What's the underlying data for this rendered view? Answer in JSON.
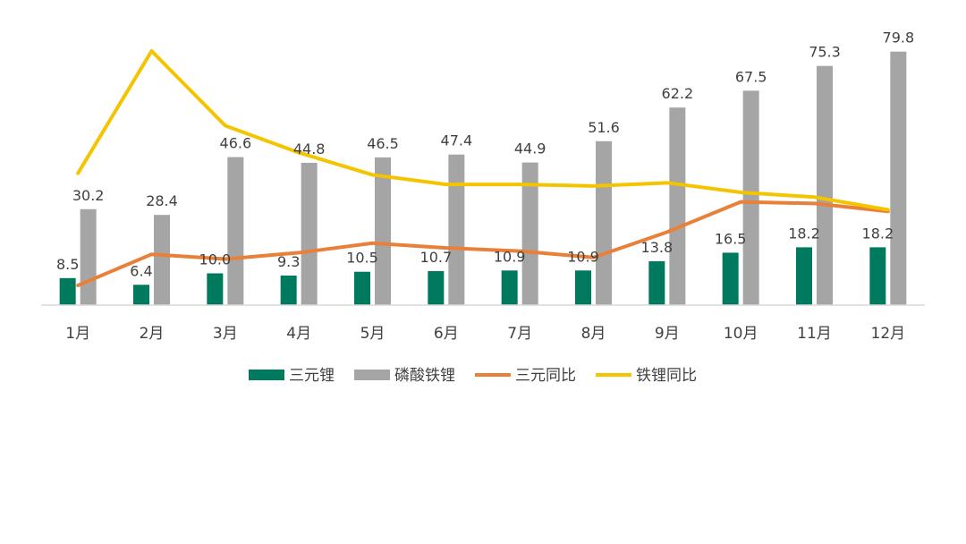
{
  "chart_data": {
    "type": "bar",
    "categories": [
      "1月",
      "2月",
      "3月",
      "4月",
      "5月",
      "6月",
      "7月",
      "8月",
      "9月",
      "10月",
      "11月",
      "12月"
    ],
    "series": [
      {
        "name": "三元锂",
        "kind": "bar",
        "color": "#007A5E",
        "values": [
          8.5,
          6.4,
          10.0,
          9.3,
          10.5,
          10.7,
          10.9,
          10.9,
          13.8,
          16.5,
          18.2,
          18.2
        ],
        "labels": [
          "8.5",
          "6.4",
          "10.0",
          "9.3",
          "10.5",
          "10.7",
          "10.9",
          "10.9",
          "13.8",
          "16.5",
          "18.2",
          "18.2"
        ]
      },
      {
        "name": "磷酸铁锂",
        "kind": "bar",
        "color": "#A5A5A5",
        "values": [
          30.2,
          28.4,
          46.6,
          44.8,
          46.5,
          47.4,
          44.9,
          51.6,
          62.2,
          67.5,
          75.3,
          79.8
        ],
        "labels": [
          "30.2",
          "28.4",
          "46.6",
          "44.8",
          "46.5",
          "47.4",
          "44.9",
          "51.6",
          "62.2",
          "67.5",
          "75.3",
          "79.8"
        ]
      },
      {
        "name": "三元同比",
        "kind": "line",
        "color": "#E8803A",
        "values": [
          6.2,
          16.0,
          14.5,
          16.5,
          19.5,
          18.0,
          17.0,
          15.0,
          23.0,
          32.5,
          32.0,
          29.5
        ]
      },
      {
        "name": "铁锂同比",
        "kind": "line",
        "color": "#F5C400",
        "values": [
          41.5,
          80.0,
          56.5,
          48.0,
          41.0,
          38.0,
          38.0,
          37.5,
          38.5,
          35.5,
          34.0,
          30.0
        ]
      }
    ],
    "ylim": [
      0,
      85
    ],
    "legend_position": "bottom",
    "grid": false
  }
}
